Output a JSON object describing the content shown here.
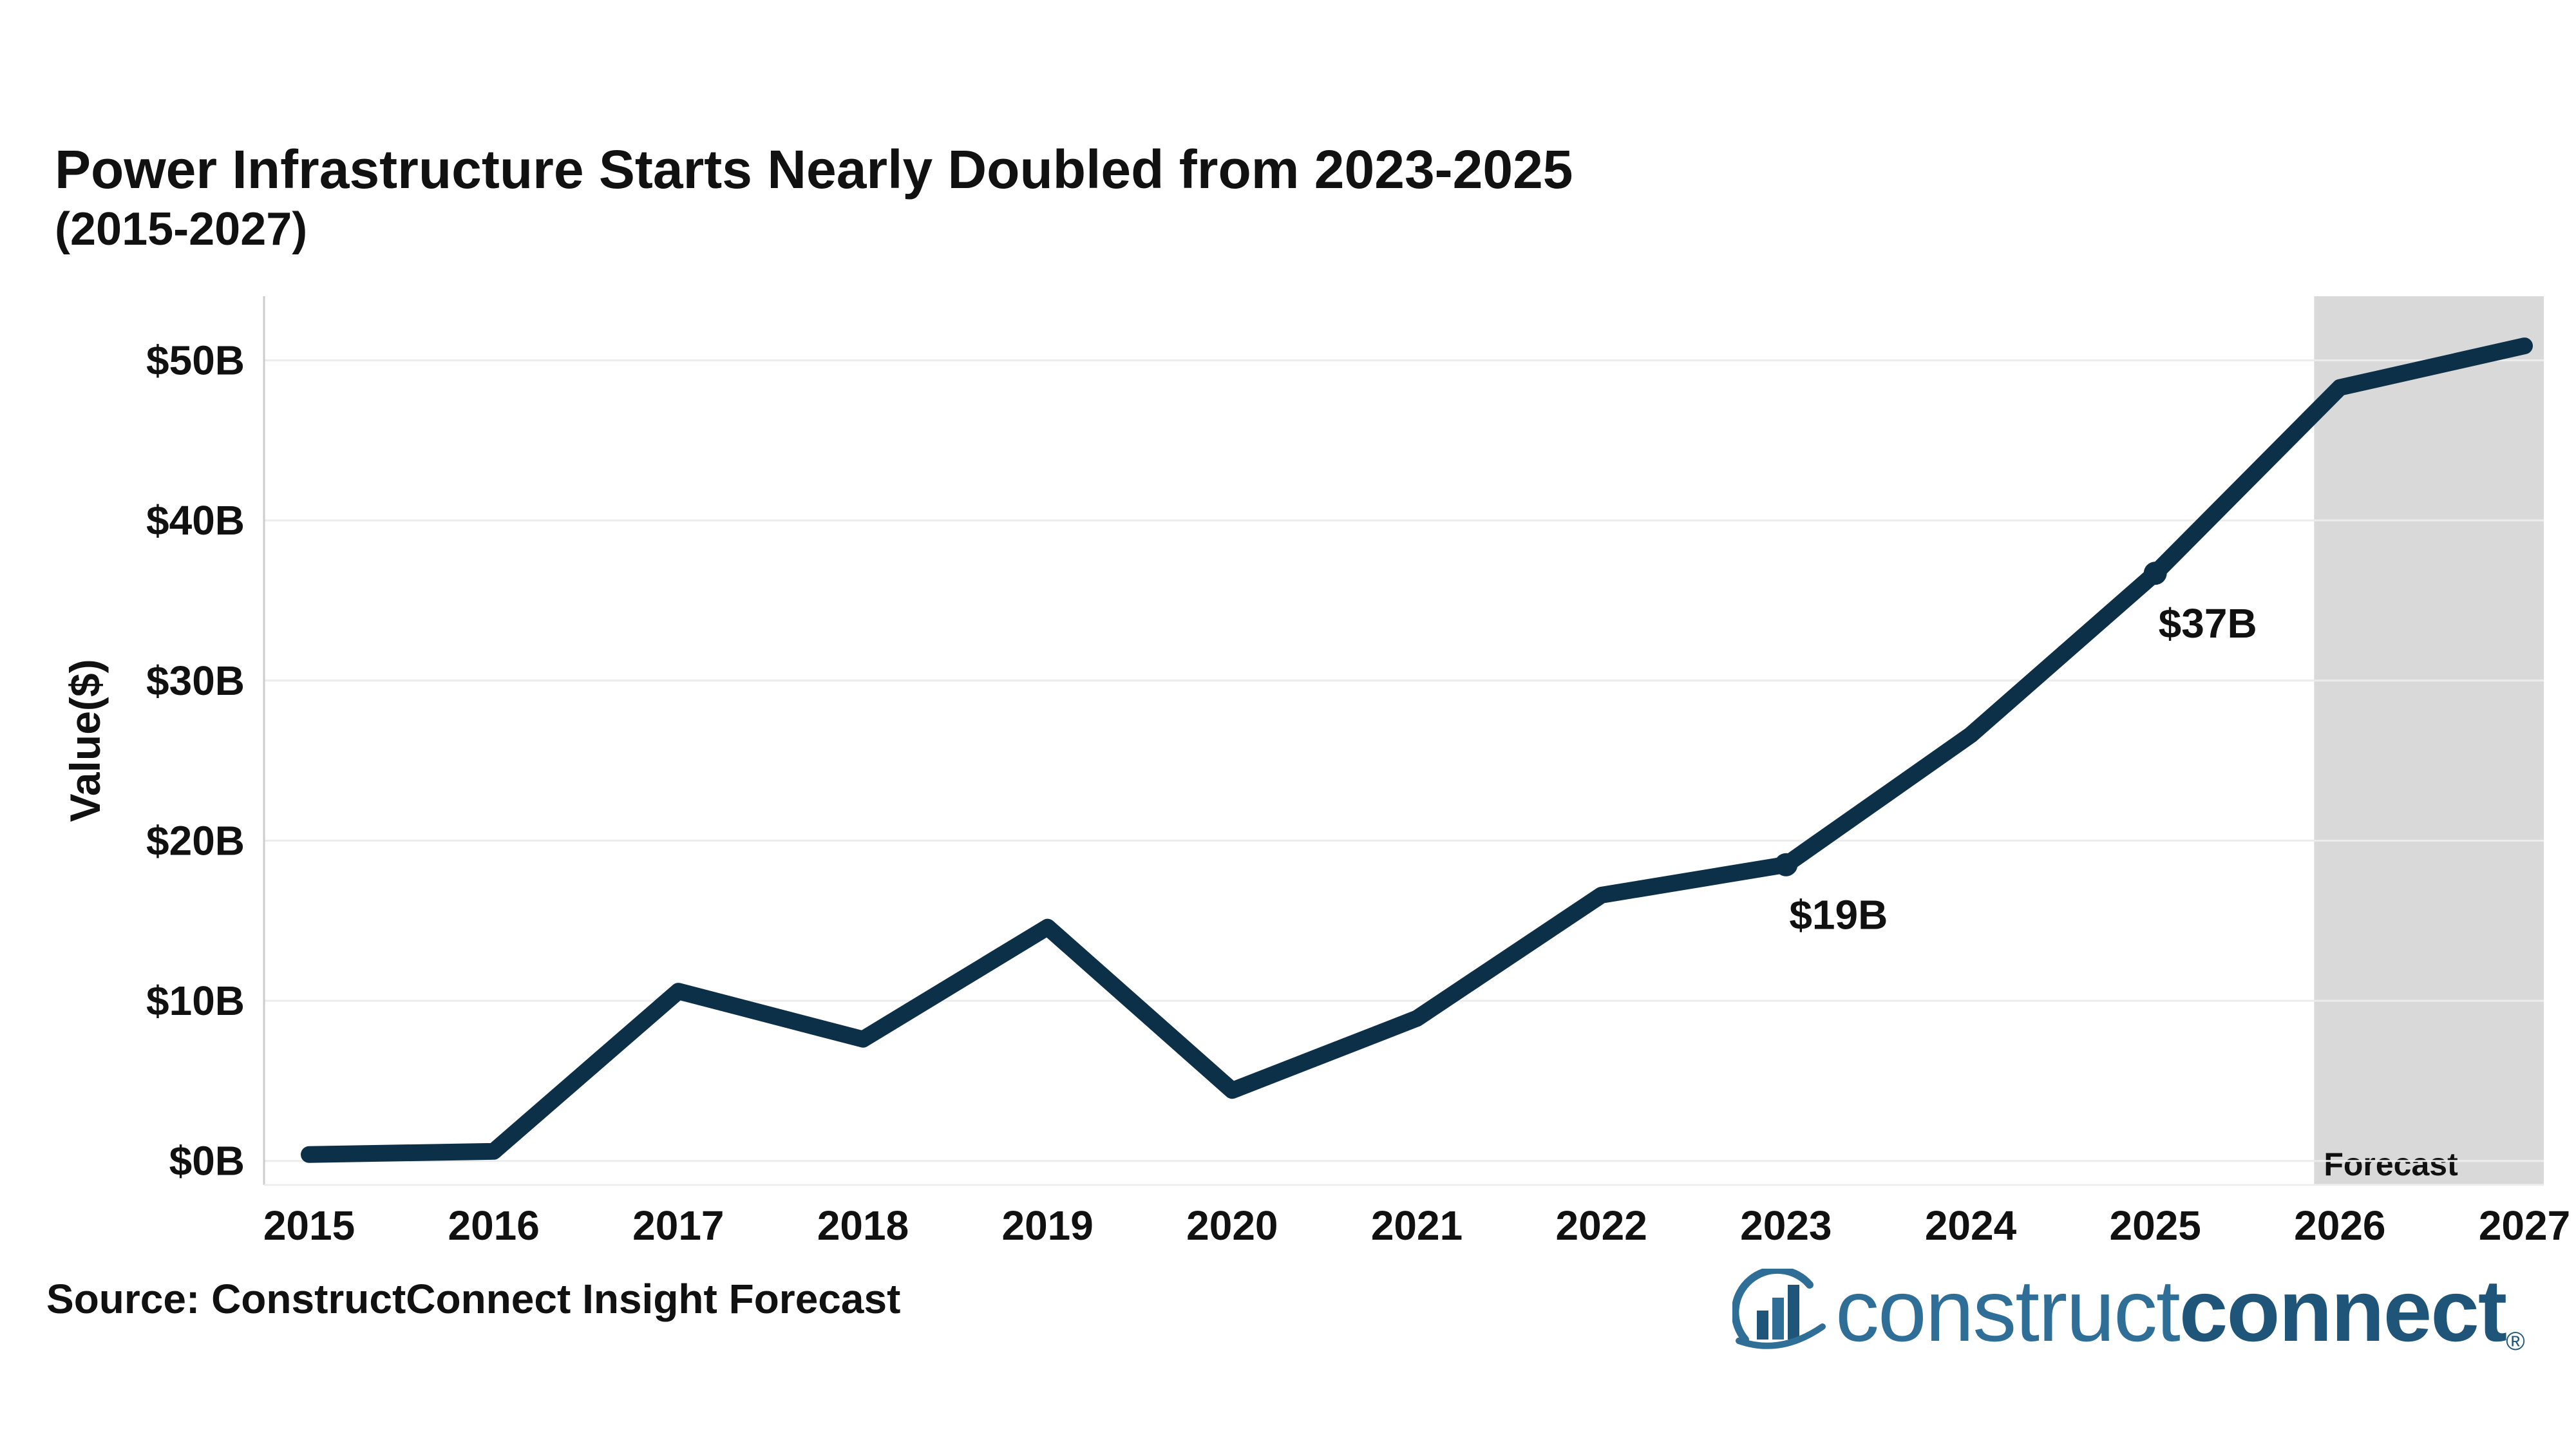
{
  "chart_data": {
    "type": "line",
    "title": "Power Infrastructure Starts Nearly Doubled from 2023-2025",
    "subtitle": "(2015-2027)",
    "xlabel": "",
    "ylabel": "Value($)",
    "x": [
      2015,
      2016,
      2017,
      2018,
      2019,
      2020,
      2021,
      2022,
      2023,
      2024,
      2025,
      2026,
      2027
    ],
    "series": [
      {
        "values": [
          0.4,
          0.6,
          10.6,
          7.6,
          14.6,
          4.4,
          8.9,
          16.6,
          18.5,
          26.6,
          36.7,
          48.3,
          50.9
        ]
      }
    ],
    "ylim": [
      -1.5,
      54
    ],
    "yticks": [
      0,
      10,
      20,
      30,
      40,
      50
    ],
    "ytick_labels": [
      "$0B",
      "$10B",
      "$20B",
      "$30B",
      "$40B",
      "$50B"
    ],
    "xtick_labels": [
      "2015",
      "2016",
      "2017",
      "2018",
      "2019",
      "2020",
      "2021",
      "2022",
      "2023",
      "2024",
      "2025",
      "2026",
      "2027"
    ],
    "grid": true,
    "line_color": "#0d3049",
    "forecast_region": {
      "x_start": 2026,
      "x_end": 2027,
      "label": "Forecast",
      "color": "#d9d9d9"
    },
    "annotations": [
      {
        "x": 2023,
        "y": 18.5,
        "text": "$19B"
      },
      {
        "x": 2025,
        "y": 36.7,
        "text": "$37B"
      }
    ]
  },
  "source": "Source: ConstructConnect Insight Forecast",
  "logo": {
    "light": "construct",
    "bold": "connect",
    "mark": "®"
  }
}
